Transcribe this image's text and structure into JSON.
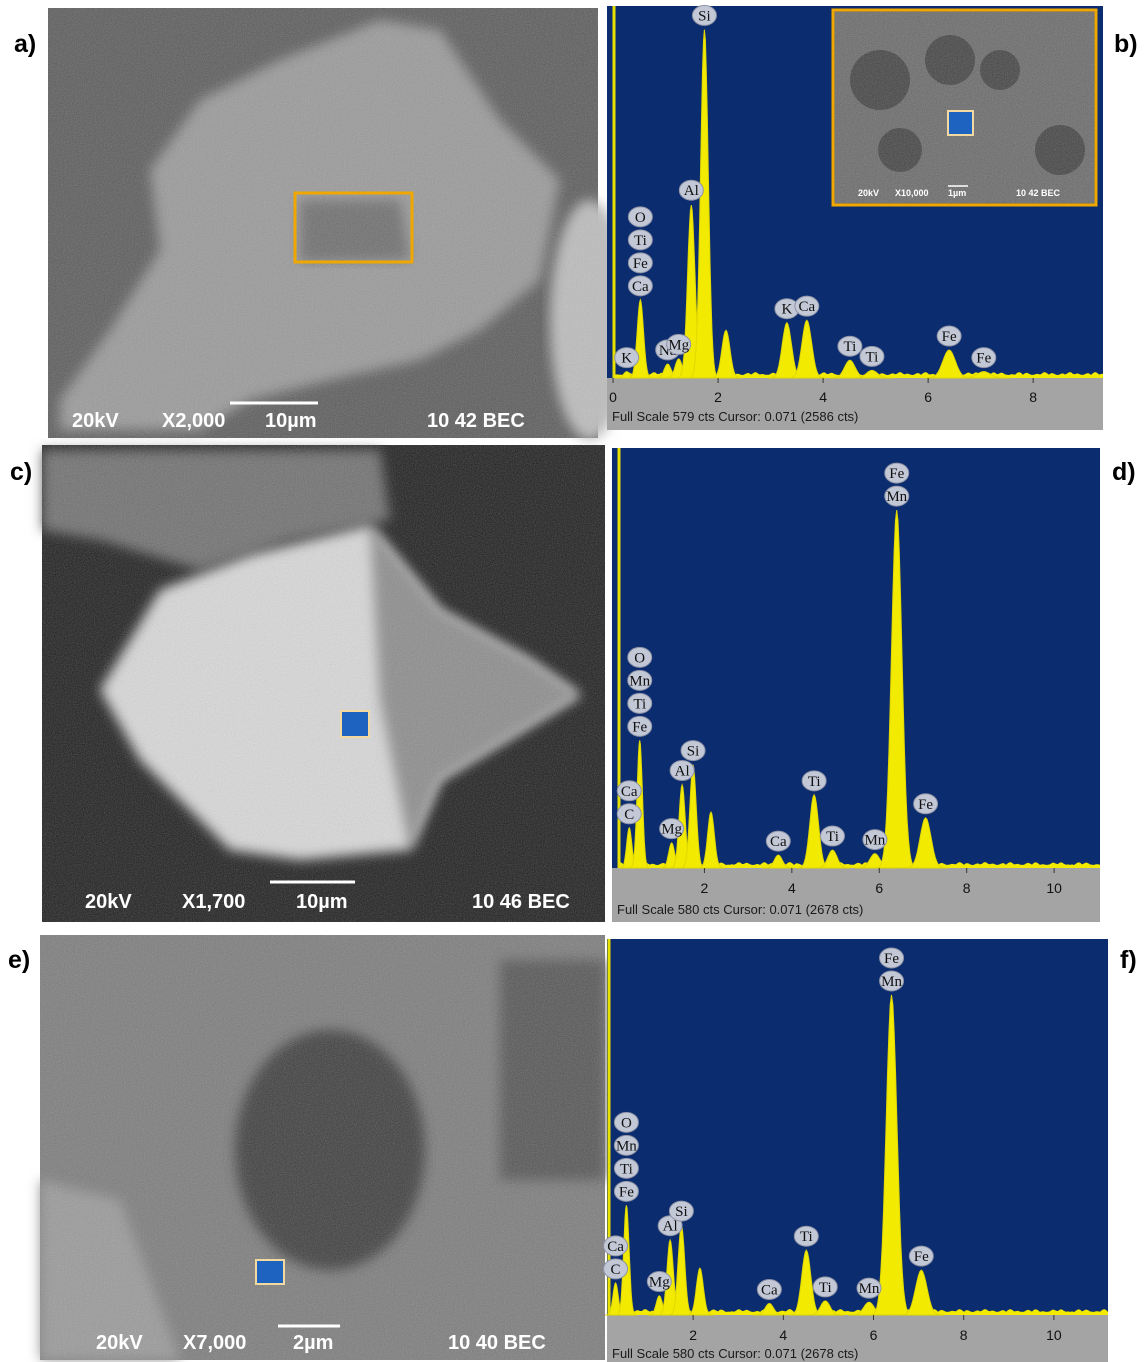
{
  "sem": [
    {
      "label": "a)",
      "captions": [
        "20kV",
        "X2,000",
        "10µm",
        "10 42 BEC"
      ]
    },
    {
      "label": "c)",
      "captions": [
        "20kV",
        "X1,700",
        "10µm",
        "10 46 BEC"
      ]
    },
    {
      "label": "e)",
      "captions": [
        "20kV",
        "X7,000",
        "2µm",
        "10 40 BEC"
      ]
    }
  ],
  "spectra": [
    {
      "label": "b)",
      "footer": "Full Scale 579 cts Cursor: 0.071  (2586 cts)",
      "xlim": [
        -0.02,
        9.33
      ],
      "xticks": [
        0,
        2,
        4,
        6,
        8
      ],
      "ylim": [
        0,
        579
      ],
      "inset_captions": [
        "20kV",
        "X10,000",
        "1µm",
        "10 42 BEC"
      ],
      "peaks": [
        {
          "energy": 0.26,
          "counts": 10
        },
        {
          "energy": 0.52,
          "counts": 123
        },
        {
          "energy": 1.04,
          "counts": 22
        },
        {
          "energy": 1.25,
          "counts": 30
        },
        {
          "energy": 1.49,
          "counts": 272
        },
        {
          "energy": 1.74,
          "counts": 548
        },
        {
          "energy": 2.15,
          "counts": 75
        },
        {
          "energy": 3.31,
          "counts": 87
        },
        {
          "energy": 3.69,
          "counts": 91
        },
        {
          "energy": 4.51,
          "counts": 28
        },
        {
          "energy": 4.93,
          "counts": 12
        },
        {
          "energy": 6.4,
          "counts": 44
        },
        {
          "energy": 7.06,
          "counts": 10
        }
      ],
      "labels": [
        {
          "energy": 0.52,
          "elements": [
            "O",
            "Ti",
            "Fe",
            "Ca"
          ]
        },
        {
          "energy": 0.26,
          "elements": [
            "K"
          ]
        },
        {
          "energy": 1.04,
          "elements": [
            "Na"
          ]
        },
        {
          "energy": 1.25,
          "elements": [
            "Mg"
          ]
        },
        {
          "energy": 1.49,
          "elements": [
            "Al"
          ]
        },
        {
          "energy": 1.74,
          "elements": [
            "Si"
          ]
        },
        {
          "energy": 3.31,
          "elements": [
            "K"
          ]
        },
        {
          "energy": 3.69,
          "elements": [
            "Ca"
          ]
        },
        {
          "energy": 4.51,
          "elements": [
            "Ti"
          ]
        },
        {
          "energy": 4.93,
          "elements": [
            "Ti"
          ]
        },
        {
          "energy": 6.4,
          "elements": [
            "Fe"
          ]
        },
        {
          "energy": 7.06,
          "elements": [
            "Fe"
          ]
        }
      ]
    },
    {
      "label": "d)",
      "footer": "Full Scale 580 cts Cursor: 0.071  (2678 cts)",
      "xlim": [
        0,
        11.05
      ],
      "xticks": [
        2,
        4,
        6,
        8,
        10
      ],
      "ylim": [
        0,
        580
      ],
      "peaks": [
        {
          "energy": 0.28,
          "counts": 56
        },
        {
          "energy": 0.52,
          "counts": 178
        },
        {
          "energy": 1.25,
          "counts": 35
        },
        {
          "energy": 1.49,
          "counts": 116
        },
        {
          "energy": 1.74,
          "counts": 144
        },
        {
          "energy": 2.15,
          "counts": 78
        },
        {
          "energy": 3.69,
          "counts": 18
        },
        {
          "energy": 4.51,
          "counts": 102
        },
        {
          "energy": 4.93,
          "counts": 25
        },
        {
          "energy": 5.9,
          "counts": 20
        },
        {
          "energy": 6.4,
          "counts": 499
        },
        {
          "energy": 7.06,
          "counts": 70
        }
      ],
      "labels": [
        {
          "energy": 0.52,
          "elements": [
            "O",
            "Mn",
            "Ti",
            "Fe"
          ]
        },
        {
          "energy": 0.28,
          "elements": [
            "Ca",
            "C"
          ]
        },
        {
          "energy": 1.25,
          "elements": [
            "Mg"
          ]
        },
        {
          "energy": 1.49,
          "elements": [
            "Al"
          ]
        },
        {
          "energy": 1.74,
          "elements": [
            "Si"
          ]
        },
        {
          "energy": 3.69,
          "elements": [
            "Ca"
          ]
        },
        {
          "energy": 4.51,
          "elements": [
            "Ti"
          ]
        },
        {
          "energy": 4.93,
          "elements": [
            "Ti"
          ]
        },
        {
          "energy": 5.9,
          "elements": [
            "Mn"
          ]
        },
        {
          "energy": 6.4,
          "elements": [
            "Fe",
            "Mn"
          ]
        },
        {
          "energy": 7.06,
          "elements": [
            "Fe"
          ]
        }
      ]
    },
    {
      "label": "f)",
      "footer": "Full Scale 580 cts Cursor: 0.071  (2678 cts)",
      "xlim": [
        0.09,
        11.2
      ],
      "xticks": [
        2,
        4,
        6,
        8,
        10
      ],
      "ylim": [
        0,
        580
      ],
      "peaks": [
        {
          "energy": 0.28,
          "counts": 50
        },
        {
          "energy": 0.52,
          "counts": 171
        },
        {
          "energy": 1.25,
          "counts": 30
        },
        {
          "energy": 1.49,
          "counts": 117
        },
        {
          "energy": 1.74,
          "counts": 140
        },
        {
          "energy": 2.15,
          "counts": 73
        },
        {
          "energy": 3.69,
          "counts": 18
        },
        {
          "energy": 4.51,
          "counts": 101
        },
        {
          "energy": 4.93,
          "counts": 22
        },
        {
          "energy": 5.9,
          "counts": 20
        },
        {
          "energy": 6.4,
          "counts": 499
        },
        {
          "energy": 7.06,
          "counts": 70
        }
      ],
      "labels": [
        {
          "energy": 0.52,
          "elements": [
            "O",
            "Mn",
            "Ti",
            "Fe"
          ]
        },
        {
          "energy": 0.28,
          "elements": [
            "Ca",
            "C"
          ]
        },
        {
          "energy": 1.25,
          "elements": [
            "Mg"
          ]
        },
        {
          "energy": 1.49,
          "elements": [
            "Al"
          ]
        },
        {
          "energy": 1.74,
          "elements": [
            "Si"
          ]
        },
        {
          "energy": 3.69,
          "elements": [
            "Ca"
          ]
        },
        {
          "energy": 4.51,
          "elements": [
            "Ti"
          ]
        },
        {
          "energy": 4.93,
          "elements": [
            "Ti"
          ]
        },
        {
          "energy": 5.9,
          "elements": [
            "Mn"
          ]
        },
        {
          "energy": 6.4,
          "elements": [
            "Fe",
            "Mn"
          ]
        },
        {
          "energy": 7.06,
          "elements": [
            "Fe"
          ]
        }
      ]
    }
  ]
}
